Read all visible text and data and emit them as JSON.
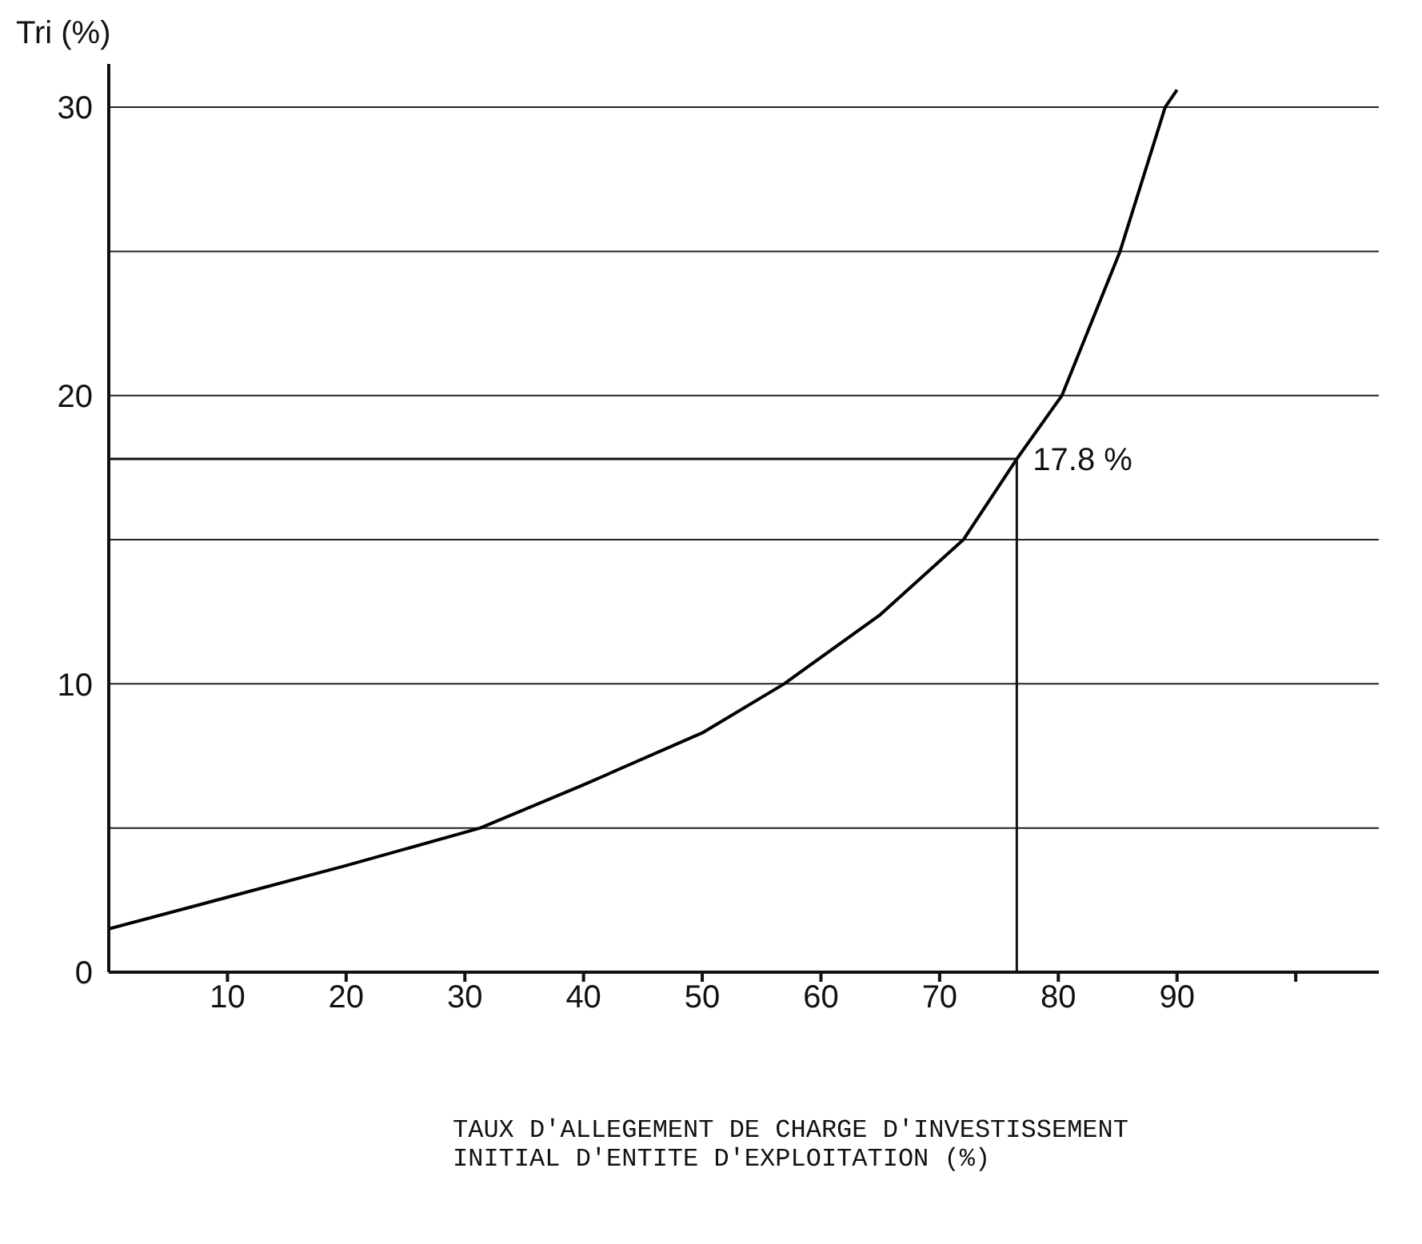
{
  "chart_data": {
    "type": "line",
    "ylabel": "Tri (%)",
    "xlabel": "TAUX D'ALLEGEMENT DE CHARGE D'INVESTISSEMENT\nINITIAL D'ENTITE D'EXPLOITATION (%)",
    "x": [
      0,
      10,
      20,
      31.3,
      40,
      50,
      56.9,
      65,
      72,
      76.5,
      80.3,
      85.2,
      89,
      90
    ],
    "series": [
      {
        "color": "#000000",
        "values": [
          1.5,
          2.6,
          3.7,
          5,
          6.5,
          8.3,
          10,
          12.4,
          15,
          17.8,
          20,
          25,
          30,
          30.6
        ]
      }
    ],
    "xlim": [
      0,
      107
    ],
    "xticks": [
      10,
      20,
      30,
      40,
      50,
      60,
      70,
      80,
      90,
      {
        "value": 100,
        "label": null
      }
    ],
    "ylim": [
      0,
      31.5
    ],
    "yticks": [
      0,
      {
        "value": 5,
        "label": null
      },
      10,
      {
        "value": 15,
        "label": null
      },
      20,
      {
        "value": 25,
        "label": null
      },
      30
    ],
    "grid": "y",
    "annotations": [
      {
        "text": "17.8 %",
        "x": 76.5,
        "y": 17.8
      }
    ]
  }
}
